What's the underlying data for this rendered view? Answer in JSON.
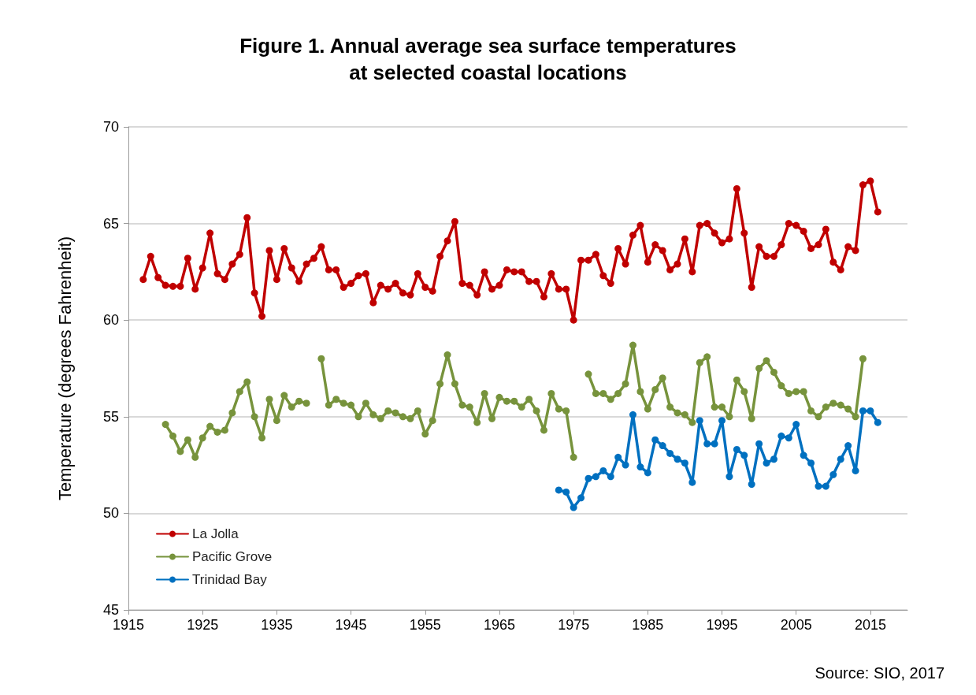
{
  "chart_data": {
    "type": "line",
    "title": "Figure 1. Annual average sea surface temperatures\nat selected coastal locations",
    "ylabel": "Temperature (degrees Fahrenheit)",
    "annotations": [
      "Source: SIO, 2017"
    ],
    "xlim": [
      1915,
      2020
    ],
    "xticks": [
      1915,
      1925,
      1935,
      1945,
      1955,
      1965,
      1975,
      1985,
      1995,
      2005,
      2015
    ],
    "ylim": [
      45,
      70
    ],
    "yticks": [
      45,
      50,
      55,
      60,
      65,
      70
    ],
    "grid": "y",
    "legend": "bottom left",
    "marker": "circle",
    "line_style": "solid",
    "series": [
      {
        "name": "La Jolla",
        "color": "#c00000",
        "x": [
          1917,
          1918,
          1919,
          1920,
          1921,
          1922,
          1923,
          1924,
          1925,
          1926,
          1927,
          1928,
          1929,
          1930,
          1931,
          1932,
          1933,
          1934,
          1935,
          1936,
          1937,
          1938,
          1939,
          1940,
          1941,
          1942,
          1943,
          1944,
          1945,
          1946,
          1947,
          1948,
          1949,
          1950,
          1951,
          1952,
          1953,
          1954,
          1955,
          1956,
          1957,
          1958,
          1959,
          1960,
          1961,
          1962,
          1963,
          1964,
          1965,
          1966,
          1967,
          1968,
          1969,
          1970,
          1971,
          1972,
          1973,
          1974,
          1975,
          1976,
          1977,
          1978,
          1979,
          1980,
          1981,
          1982,
          1983,
          1984,
          1985,
          1986,
          1987,
          1988,
          1989,
          1990,
          1991,
          1992,
          1993,
          1994,
          1995,
          1996,
          1997,
          1998,
          1999,
          2000,
          2001,
          2002,
          2003,
          2004,
          2005,
          2006,
          2007,
          2008,
          2009,
          2010,
          2011,
          2012,
          2013,
          2014,
          2015,
          2016
        ],
        "values": [
          62.1,
          63.3,
          62.2,
          61.8,
          61.75,
          61.75,
          63.2,
          61.6,
          62.7,
          64.5,
          62.4,
          62.1,
          62.9,
          63.4,
          65.3,
          61.4,
          60.2,
          63.6,
          62.1,
          63.7,
          62.7,
          62.0,
          62.9,
          63.2,
          63.8,
          62.6,
          62.6,
          61.7,
          61.9,
          62.3,
          62.4,
          60.9,
          61.8,
          61.6,
          61.9,
          61.4,
          61.3,
          62.4,
          61.7,
          61.5,
          63.3,
          64.1,
          65.1,
          61.9,
          61.8,
          61.3,
          62.5,
          61.6,
          61.8,
          62.6,
          62.5,
          62.5,
          62.0,
          62.0,
          61.2,
          62.4,
          61.6,
          61.6,
          60.0,
          63.1,
          63.1,
          63.4,
          62.3,
          61.9,
          63.7,
          62.9,
          64.4,
          64.9,
          63.0,
          63.9,
          63.6,
          62.6,
          62.9,
          64.2,
          62.5,
          64.9,
          65.0,
          64.5,
          64.0,
          64.2,
          66.8,
          64.5,
          61.7,
          63.8,
          63.3,
          63.3,
          63.9,
          65.0,
          64.9,
          64.6,
          63.7,
          63.9,
          64.7,
          63.0,
          62.6,
          63.8,
          63.6,
          67.0,
          67.2,
          65.6
        ]
      },
      {
        "name": "Pacific Grove",
        "color": "#77933c",
        "x": [
          1920,
          1921,
          1922,
          1923,
          1924,
          1925,
          1926,
          1927,
          1928,
          1929,
          1930,
          1931,
          1932,
          1933,
          1934,
          1935,
          1936,
          1937,
          1938,
          1939,
          1940,
          1941,
          1942,
          1943,
          1944,
          1945,
          1946,
          1947,
          1948,
          1949,
          1950,
          1951,
          1952,
          1953,
          1954,
          1955,
          1956,
          1957,
          1958,
          1959,
          1960,
          1961,
          1962,
          1963,
          1964,
          1965,
          1966,
          1967,
          1968,
          1969,
          1970,
          1971,
          1972,
          1973,
          1974,
          1975,
          1976,
          1977,
          1978,
          1979,
          1980,
          1981,
          1982,
          1983,
          1984,
          1985,
          1986,
          1987,
          1988,
          1989,
          1990,
          1991,
          1992,
          1993,
          1994,
          1995,
          1996,
          1997,
          1998,
          1999,
          2000,
          2001,
          2002,
          2003,
          2004,
          2005,
          2006,
          2007,
          2008,
          2009,
          2010,
          2011,
          2012,
          2013,
          2014
        ],
        "values": [
          54.6,
          54.0,
          53.2,
          53.8,
          52.9,
          53.9,
          54.5,
          54.2,
          54.3,
          55.2,
          56.3,
          56.8,
          55.0,
          53.9,
          55.9,
          54.8,
          56.1,
          55.5,
          55.8,
          55.7,
          null,
          58.0,
          55.6,
          55.9,
          55.7,
          55.6,
          55.0,
          55.7,
          55.1,
          54.9,
          55.3,
          55.2,
          55.0,
          54.9,
          55.3,
          54.1,
          54.8,
          56.7,
          58.2,
          56.7,
          55.6,
          55.5,
          54.7,
          56.2,
          54.9,
          56.0,
          55.8,
          55.8,
          55.5,
          55.9,
          55.3,
          54.3,
          56.2,
          55.4,
          55.3,
          52.9,
          null,
          57.2,
          56.2,
          56.2,
          55.9,
          56.2,
          56.7,
          58.7,
          56.3,
          55.4,
          56.4,
          57.0,
          55.5,
          55.2,
          55.1,
          54.7,
          57.8,
          58.1,
          55.5,
          55.5,
          55.0,
          56.9,
          56.3,
          54.9,
          57.5,
          57.9,
          57.3,
          56.6,
          56.2,
          56.3,
          56.3,
          55.3,
          55.0,
          55.5,
          55.7,
          55.6,
          55.4,
          55.0,
          58.0
        ]
      },
      {
        "name": "Trinidad Bay",
        "color": "#0070c0",
        "x": [
          1973,
          1974,
          1975,
          1976,
          1977,
          1978,
          1979,
          1980,
          1981,
          1982,
          1983,
          1984,
          1985,
          1986,
          1987,
          1988,
          1989,
          1990,
          1991,
          1992,
          1993,
          1994,
          1995,
          1996,
          1997,
          1998,
          1999,
          2000,
          2001,
          2002,
          2003,
          2004,
          2005,
          2006,
          2007,
          2008,
          2009,
          2010,
          2011,
          2012,
          2013,
          2014,
          2015,
          2016
        ],
        "values": [
          51.2,
          51.1,
          50.3,
          50.8,
          51.8,
          51.9,
          52.2,
          51.9,
          52.9,
          52.5,
          55.1,
          52.4,
          52.1,
          53.8,
          53.5,
          53.1,
          52.8,
          52.6,
          51.6,
          54.8,
          53.6,
          53.6,
          54.8,
          51.9,
          53.3,
          53.0,
          51.5,
          53.6,
          52.6,
          52.8,
          54.0,
          53.9,
          54.6,
          53.0,
          52.6,
          51.4,
          51.4,
          52.0,
          52.8,
          53.5,
          52.2,
          55.3,
          55.3,
          54.7
        ]
      }
    ]
  }
}
